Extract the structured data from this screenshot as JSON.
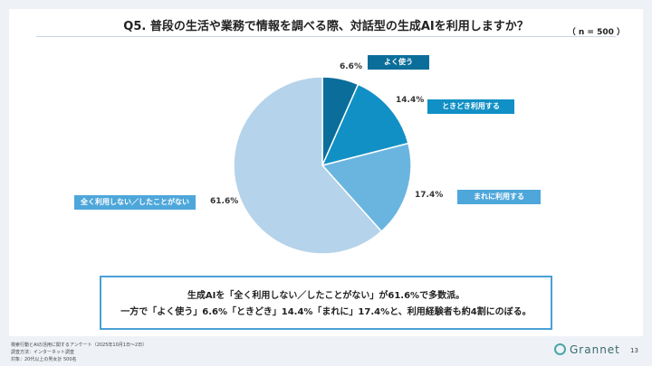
{
  "title": "Q5. 普段の生活や業務で情報を調べる際、対話型の生成AIを利用しますか？",
  "sample": "（ n = 500 ）",
  "chart_data": {
    "type": "pie",
    "title": "Q5. 普段の生活や業務で情報を調べる際、対話型の生成AIを利用しますか？",
    "slices": [
      {
        "label": "よく使う",
        "value": 6.6,
        "pct_label": "6.6%",
        "color": "#0b6e9a",
        "tag_color": "#0b6e9a"
      },
      {
        "label": "ときどき利用する",
        "value": 14.4,
        "pct_label": "14.4%",
        "color": "#1190c5",
        "tag_color": "#1190c5"
      },
      {
        "label": "まれに利用する",
        "value": 17.4,
        "pct_label": "17.4%",
        "color": "#6ab5e0",
        "tag_color": "#4ea7db"
      },
      {
        "label": "全く利用しない／したことがない",
        "value": 61.6,
        "pct_label": "61.6%",
        "color": "#b5d3ea",
        "tag_color": "#4ea7db"
      }
    ]
  },
  "summary": {
    "line1": "生成AIを「全く利用しない／したことがない」が61.6%で多数派。",
    "line2": "一方で「よく使う」6.6%「ときどき」14.4%「まれに」17.4%と、利用経験者も約4割にのぼる。"
  },
  "footer": {
    "line1": "検索行動とAIの活用に関するアンケート（2025年10月1日〜2日）",
    "line2": "調査方法：インターネット調査",
    "line3": "対象：20代以上の男女計 500名"
  },
  "logo": "Grannet",
  "page_number": "13"
}
